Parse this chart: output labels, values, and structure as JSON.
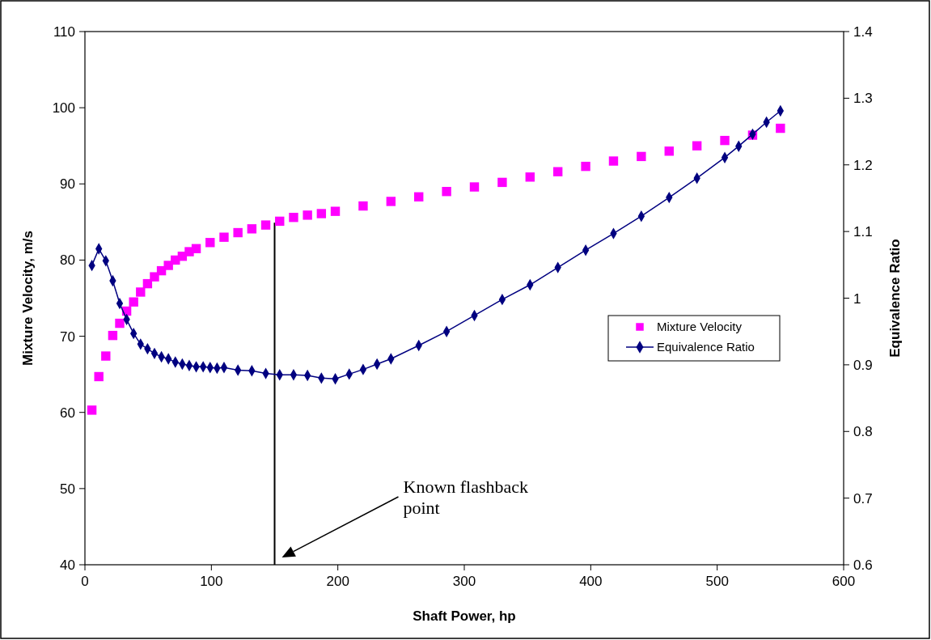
{
  "chart_data": {
    "type": "scatter",
    "xlabel": "Shaft Power, hp",
    "ylabel": "Mixture Velocity, m/s",
    "y2label": "Equivalence Ratio",
    "xlim": [
      0,
      600
    ],
    "xticks": [
      0,
      100,
      200,
      300,
      400,
      500,
      600
    ],
    "ylim": [
      40,
      110
    ],
    "yticks": [
      40,
      50,
      60,
      70,
      80,
      90,
      100,
      110
    ],
    "y2lim": [
      0.6,
      1.4
    ],
    "y2ticks": [
      0.6,
      0.7,
      0.8,
      0.9,
      1,
      1.1,
      1.2,
      1.3,
      1.4
    ],
    "grid": false,
    "legend": "right",
    "series": [
      {
        "name": "Mixture Velocity",
        "marker": "square",
        "color": "#ff00ff",
        "x": [
          5.5,
          11,
          16.5,
          22,
          27.5,
          33,
          38.5,
          44,
          49.5,
          55,
          60.5,
          66,
          71.5,
          77,
          82.5,
          88,
          99,
          110,
          121,
          132,
          143,
          154,
          165,
          176,
          187,
          198,
          220,
          242,
          264,
          286,
          308,
          330,
          352,
          374,
          396,
          418,
          440,
          462,
          484,
          506,
          528,
          550
        ],
        "values": [
          60.3,
          64.7,
          67.4,
          70.1,
          71.7,
          73.3,
          74.5,
          75.8,
          76.9,
          77.8,
          78.6,
          79.3,
          80.0,
          80.5,
          81.1,
          81.5,
          82.3,
          83.0,
          83.6,
          84.1,
          84.6,
          85.1,
          85.6,
          85.9,
          86.1,
          86.4,
          87.1,
          87.7,
          88.3,
          89.0,
          89.6,
          90.2,
          90.9,
          91.6,
          92.3,
          93.0,
          93.6,
          94.3,
          95.0,
          95.7,
          96.4,
          97.3
        ]
      },
      {
        "name": "Equivalence Ratio",
        "type": "line",
        "axis": "y2",
        "marker": "diamond",
        "line_style": "solid",
        "color": "#000080",
        "x": [
          5.5,
          11,
          16.5,
          22,
          27.5,
          33,
          38.5,
          44,
          49.5,
          55,
          60.5,
          66,
          71.5,
          77,
          82.5,
          88,
          93.5,
          99,
          104.5,
          110,
          121,
          132,
          143,
          154,
          165,
          176,
          187,
          198,
          209,
          220,
          231,
          242,
          264,
          286,
          308,
          330,
          352,
          374,
          396,
          418,
          440,
          462,
          484,
          506,
          517,
          528,
          539,
          550
        ],
        "values": [
          1.049,
          1.074,
          1.056,
          1.026,
          0.992,
          0.968,
          0.947,
          0.931,
          0.924,
          0.917,
          0.912,
          0.909,
          0.904,
          0.901,
          0.899,
          0.897,
          0.897,
          0.896,
          0.895,
          0.896,
          0.892,
          0.891,
          0.887,
          0.885,
          0.885,
          0.884,
          0.88,
          0.879,
          0.886,
          0.893,
          0.901,
          0.909,
          0.929,
          0.95,
          0.974,
          0.998,
          1.02,
          1.046,
          1.072,
          1.097,
          1.123,
          1.151,
          1.18,
          1.211,
          1.228,
          1.246,
          1.264,
          1.281
        ]
      }
    ],
    "ref_lines": [
      {
        "axis": "x",
        "value": 150,
        "color": "#000000",
        "line_style": "solid"
      }
    ],
    "annotations": [
      "Known flashback point"
    ]
  }
}
